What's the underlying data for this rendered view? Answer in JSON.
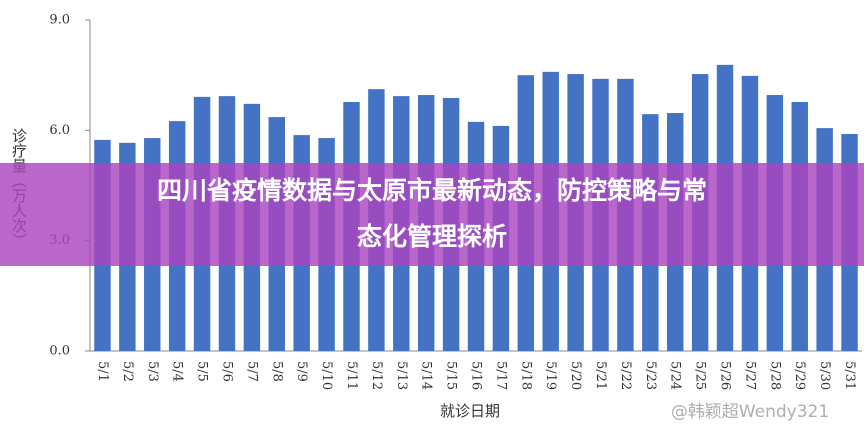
{
  "chart_data": {
    "type": "bar",
    "y_label": "诊疗量（万人次）",
    "x_label": "就诊日期",
    "categories": [
      "5/1",
      "5/2",
      "5/3",
      "5/4",
      "5/5",
      "5/6",
      "5/7",
      "5/8",
      "5/9",
      "5/10",
      "5/11",
      "5/12",
      "5/13",
      "5/14",
      "5/15",
      "5/16",
      "5/17",
      "5/18",
      "5/19",
      "5/20",
      "5/21",
      "5/22",
      "5/23",
      "5/24",
      "5/25",
      "5/26",
      "5/27",
      "5/28",
      "5/29",
      "5/30",
      "5/31"
    ],
    "values": [
      5.74,
      5.66,
      5.79,
      6.25,
      6.91,
      6.93,
      6.72,
      6.36,
      5.87,
      5.79,
      6.77,
      7.12,
      6.93,
      6.96,
      6.88,
      6.23,
      6.12,
      7.5,
      7.59,
      7.53,
      7.4,
      7.4,
      6.44,
      6.47,
      7.53,
      7.78,
      7.48,
      6.96,
      6.77,
      6.06,
      5.9
    ],
    "color": "#4472c4",
    "ylim": [
      0,
      9
    ],
    "yticks": [
      {
        "value": 0,
        "label": "0.0"
      },
      {
        "value": 3,
        "label": "3.0"
      },
      {
        "value": 6,
        "label": "6.0"
      },
      {
        "value": 9,
        "label": "9.0"
      }
    ],
    "grid": false
  },
  "banner": [
    "四川省疫情数据与太原市最新动态，防控策略与常",
    "态化管理探析"
  ],
  "watermark": "@韩颖超Wendy321"
}
